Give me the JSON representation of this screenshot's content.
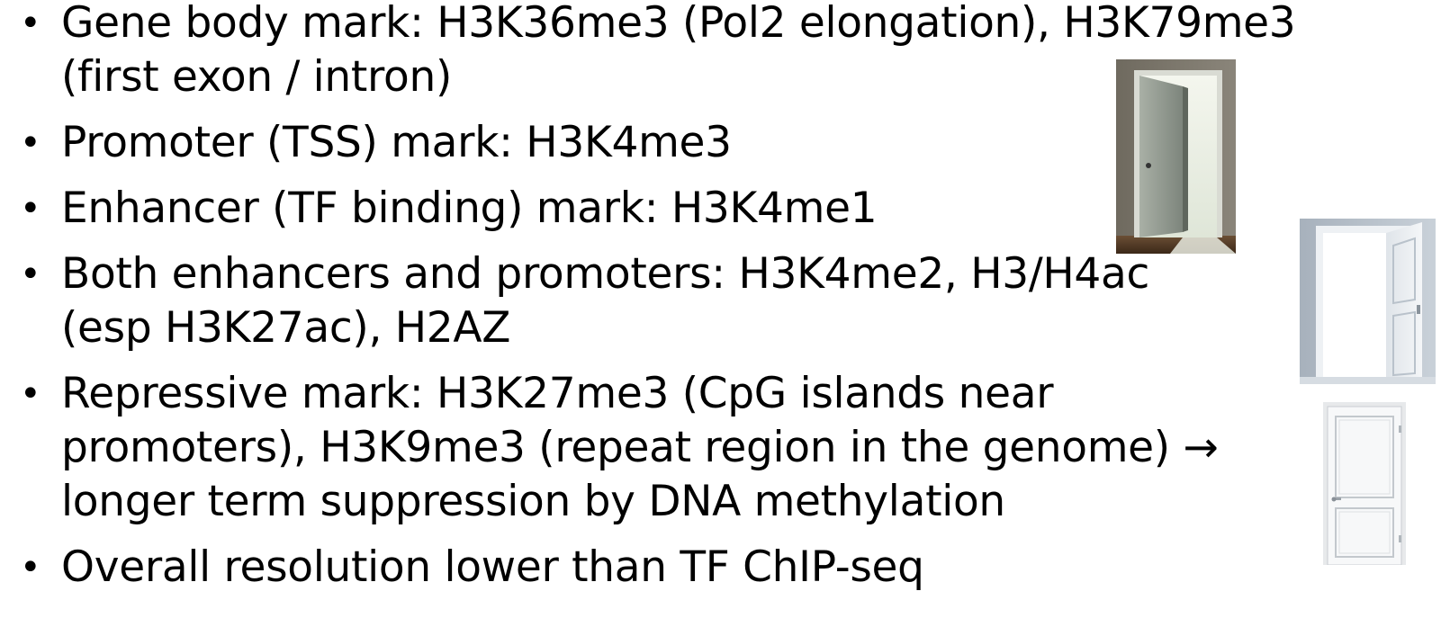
{
  "slide": {
    "bullets": [
      {
        "text": "Gene body mark: H3K36me3 (Pol2 elongation), H3K79me3 (first exon / intron)"
      },
      {
        "text": "Promoter (TSS) mark: H3K4me3"
      },
      {
        "text": "Enhancer (TF binding) mark: H3K4me1"
      },
      {
        "text": "Both enhancers and promoters: H3K4me2, H3/H4ac (esp H3K27ac), H2AZ"
      },
      {
        "text": "Repressive mark: H3K27me3 (CpG islands near promoters), H3K9me3 (repeat region in the genome) → longer term suppression by DNA methylation"
      },
      {
        "text": "Overall resolution lower than TF ChIP-seq"
      }
    ],
    "images": [
      {
        "icon": "door-slightly-open-icon"
      },
      {
        "icon": "door-open-icon"
      },
      {
        "icon": "door-closed-icon"
      }
    ],
    "colors": {
      "text": "#000000",
      "background": "#ffffff"
    }
  }
}
